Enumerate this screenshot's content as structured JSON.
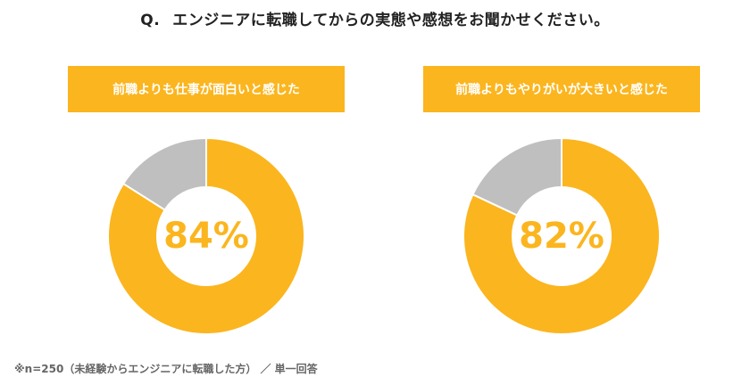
{
  "question": {
    "prefix": "Q.",
    "text": "エンジニアに転職してからの実態や感想をお聞かせください。"
  },
  "footnote": "※n=250（未経験からエンジニアに転職した方） ／ 単一回答",
  "colors": {
    "primary": "#fbb51e",
    "secondary": "#bfbfbf"
  },
  "chart_data": [
    {
      "type": "pie",
      "title": "前職よりも仕事が面白いと感じた",
      "center_label": "84%",
      "values": [
        84,
        16
      ],
      "colors": [
        "#fbb51e",
        "#bfbfbf"
      ]
    },
    {
      "type": "pie",
      "title": "前職よりもやりがいが大きいと感じた",
      "center_label": "82%",
      "values": [
        82,
        18
      ],
      "colors": [
        "#fbb51e",
        "#bfbfbf"
      ]
    }
  ]
}
